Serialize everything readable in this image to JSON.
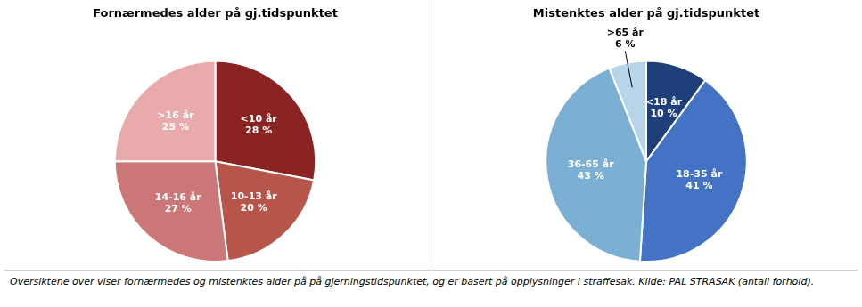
{
  "chart_data": [
    {
      "type": "pie",
      "title": "Fornærmedes alder på gj.tidspunktet",
      "categories": [
        "<10 år",
        "10-13 år",
        "14-16 år",
        ">16 år"
      ],
      "values": [
        28,
        20,
        27,
        25
      ],
      "value_labels": [
        "28 %",
        "20 %",
        "27 %",
        "25 %"
      ],
      "colors": [
        "#8B2323",
        "#B8554A",
        "#CC7777",
        "#E8AAAA"
      ],
      "data_labels": true
    },
    {
      "type": "pie",
      "title": "Mistenktes alder på gj.tidspunktet",
      "categories": [
        "<18 år",
        "18-35 år",
        "36-65 år",
        ">65 år"
      ],
      "values": [
        10,
        41,
        43,
        6
      ],
      "value_labels": [
        "10 %",
        "41 %",
        "43 %",
        "6 %"
      ],
      "colors": [
        "#1F3F7A",
        "#4472C4",
        "#7BAFD4",
        "#B8D4E8"
      ],
      "data_labels": true
    }
  ],
  "caption": "Oversiktene over viser fornærmedes og mistenktes alder på på gjerningstidspunktet, og er basert på opplysninger i straffesak. Kilde: PAL STRASAK (antall forhold)."
}
